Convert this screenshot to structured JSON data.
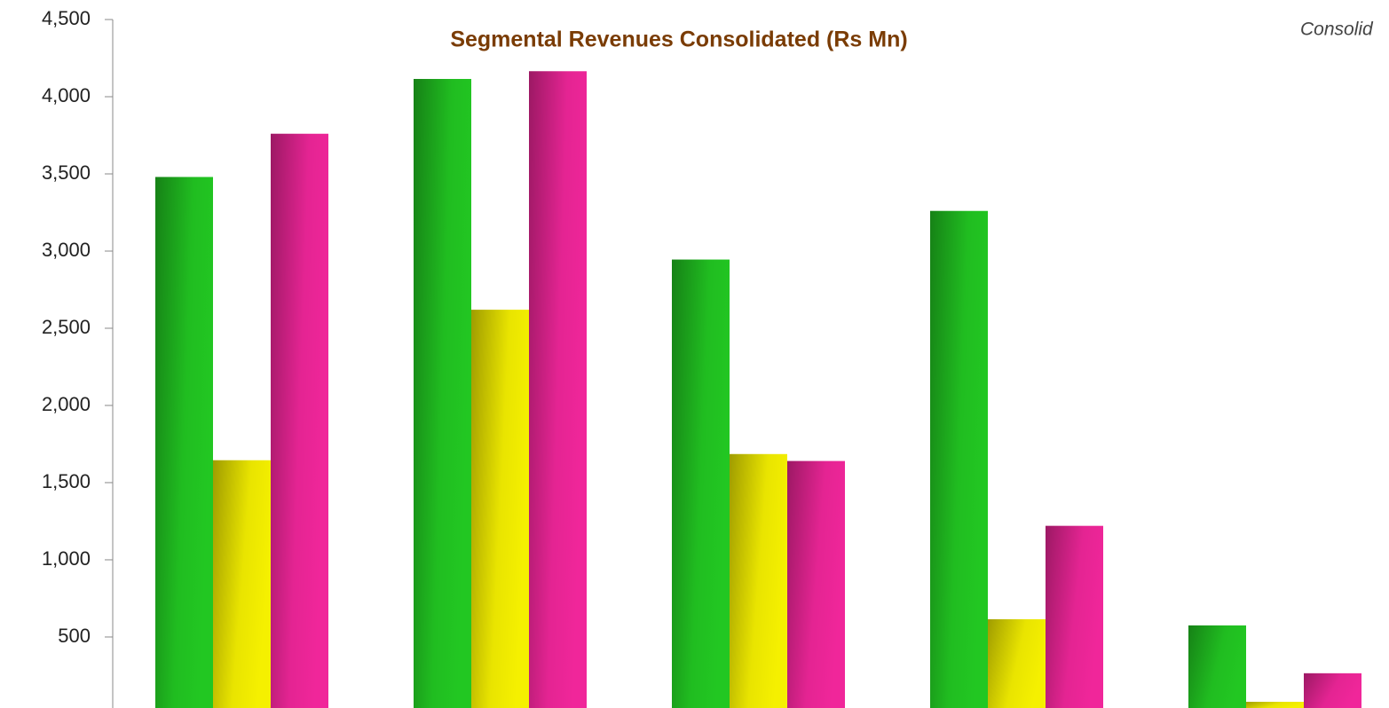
{
  "chart_data": {
    "type": "bar",
    "title": "Segmental Revenues  Consolidated (Rs Mn)",
    "annotation": "Consolid",
    "categories": [
      null,
      null,
      null,
      null,
      null
    ],
    "series": [
      {
        "color": "#22c722",
        "values": [
          3480,
          4115,
          2945,
          3260,
          575
        ]
      },
      {
        "color": "#f5f000",
        "values": [
          1645,
          2620,
          1685,
          615,
          80
        ]
      },
      {
        "color": "#f0269a",
        "values": [
          3760,
          4165,
          1640,
          1220,
          265
        ]
      }
    ],
    "ylim": [
      40,
      4500
    ],
    "yticks": [
      {
        "value": 500,
        "label": "500"
      },
      {
        "value": 1000,
        "label": "1,000"
      },
      {
        "value": 1500,
        "label": "1,500"
      },
      {
        "value": 2000,
        "label": "2,000"
      },
      {
        "value": 2500,
        "label": "2,500"
      },
      {
        "value": 3000,
        "label": "3,000"
      },
      {
        "value": 3500,
        "label": "3,500"
      },
      {
        "value": 4000,
        "label": "4,000"
      },
      {
        "value": 4500,
        "label": "4,500"
      }
    ],
    "grid": false
  }
}
